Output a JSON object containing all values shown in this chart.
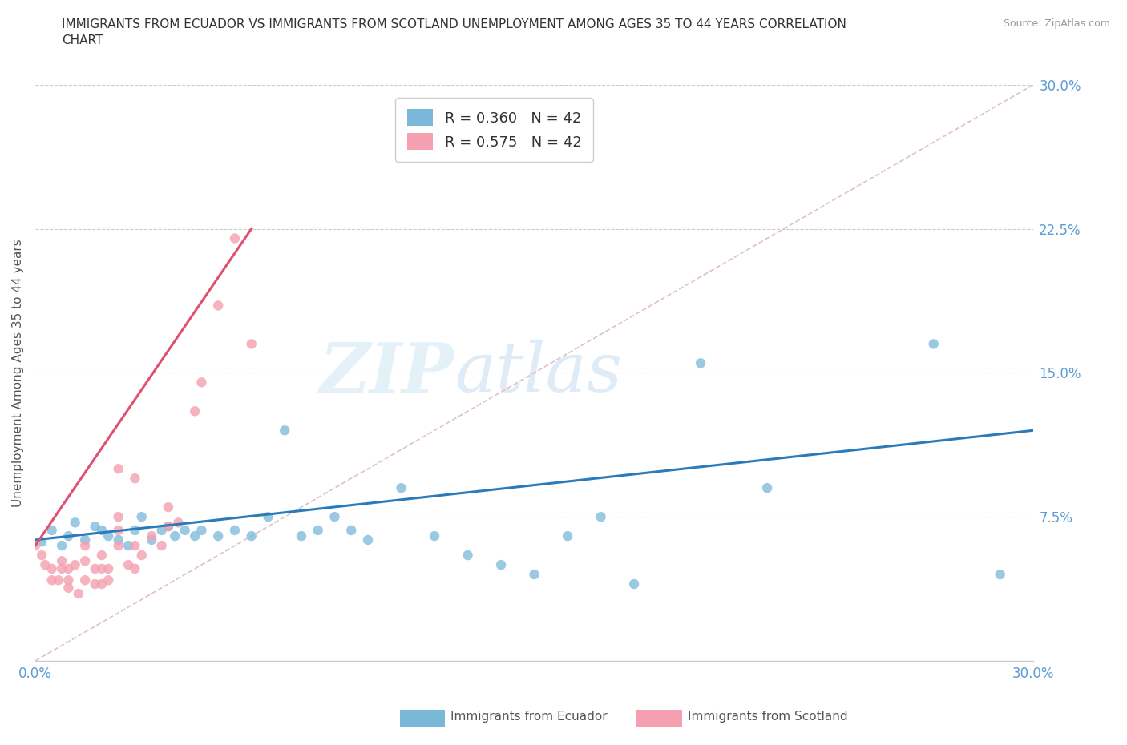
{
  "title": "IMMIGRANTS FROM ECUADOR VS IMMIGRANTS FROM SCOTLAND UNEMPLOYMENT AMONG AGES 35 TO 44 YEARS CORRELATION\nCHART",
  "source_text": "Source: ZipAtlas.com",
  "ylabel": "Unemployment Among Ages 35 to 44 years",
  "xmin": 0.0,
  "xmax": 0.3,
  "ymin": 0.0,
  "ymax": 0.3,
  "ecuador_color": "#7ab8d9",
  "scotland_color": "#f4a0b0",
  "ecuador_line_color": "#2b7bba",
  "scotland_line_color": "#e05070",
  "ecuador_R": 0.36,
  "ecuador_N": 42,
  "scotland_R": 0.575,
  "scotland_N": 42,
  "ecuador_x": [
    0.002,
    0.005,
    0.008,
    0.01,
    0.012,
    0.015,
    0.018,
    0.02,
    0.022,
    0.025,
    0.028,
    0.03,
    0.032,
    0.035,
    0.038,
    0.04,
    0.042,
    0.045,
    0.048,
    0.05,
    0.055,
    0.06,
    0.065,
    0.07,
    0.075,
    0.08,
    0.085,
    0.09,
    0.095,
    0.1,
    0.11,
    0.12,
    0.13,
    0.14,
    0.15,
    0.16,
    0.17,
    0.18,
    0.2,
    0.22,
    0.27,
    0.29
  ],
  "ecuador_y": [
    0.062,
    0.068,
    0.06,
    0.065,
    0.072,
    0.063,
    0.07,
    0.068,
    0.065,
    0.063,
    0.06,
    0.068,
    0.075,
    0.063,
    0.068,
    0.07,
    0.065,
    0.068,
    0.065,
    0.068,
    0.065,
    0.068,
    0.065,
    0.075,
    0.12,
    0.065,
    0.068,
    0.075,
    0.068,
    0.063,
    0.09,
    0.065,
    0.055,
    0.05,
    0.045,
    0.065,
    0.075,
    0.04,
    0.155,
    0.09,
    0.165,
    0.045
  ],
  "scotland_x": [
    0.0,
    0.002,
    0.003,
    0.005,
    0.005,
    0.007,
    0.008,
    0.008,
    0.01,
    0.01,
    0.01,
    0.012,
    0.013,
    0.015,
    0.015,
    0.015,
    0.018,
    0.018,
    0.02,
    0.02,
    0.02,
    0.022,
    0.022,
    0.025,
    0.025,
    0.025,
    0.025,
    0.028,
    0.03,
    0.03,
    0.03,
    0.032,
    0.035,
    0.038,
    0.04,
    0.04,
    0.043,
    0.048,
    0.05,
    0.055,
    0.06,
    0.065
  ],
  "scotland_y": [
    0.06,
    0.055,
    0.05,
    0.042,
    0.048,
    0.042,
    0.048,
    0.052,
    0.038,
    0.042,
    0.048,
    0.05,
    0.035,
    0.042,
    0.052,
    0.06,
    0.04,
    0.048,
    0.048,
    0.04,
    0.055,
    0.042,
    0.048,
    0.06,
    0.068,
    0.075,
    0.1,
    0.05,
    0.048,
    0.06,
    0.095,
    0.055,
    0.065,
    0.06,
    0.07,
    0.08,
    0.072,
    0.13,
    0.145,
    0.185,
    0.22,
    0.165
  ],
  "grid_color": "#cccccc",
  "background_color": "#ffffff",
  "title_color": "#333333",
  "axis_color": "#5b9bd5",
  "legend_box_color_ecuador": "#7ab8d9",
  "legend_box_color_scotland": "#f4a0b0"
}
